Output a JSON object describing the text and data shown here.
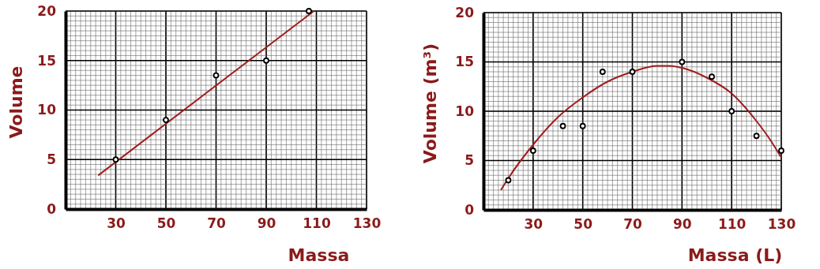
{
  "chart_data": [
    {
      "type": "scatter",
      "xlabel": "Massa",
      "ylabel": "Volume",
      "xlim": [
        10,
        130
      ],
      "ylim": [
        0,
        20
      ],
      "xticks": [
        30,
        50,
        70,
        90,
        110,
        130
      ],
      "yticks": [
        0,
        5,
        10,
        15,
        20
      ],
      "grid": true,
      "series": [
        {
          "type": "scatter",
          "marker": "circle",
          "color": "#000000",
          "x": [
            30,
            50,
            70,
            90,
            107
          ],
          "values": [
            5,
            9,
            13.5,
            15,
            20
          ]
        },
        {
          "type": "line",
          "marker": "none",
          "line_style": "solid",
          "color": "#a01c1c",
          "x": [
            23,
            109
          ],
          "values": [
            3.4,
            20
          ]
        }
      ]
    },
    {
      "type": "scatter",
      "xlabel": "Massa (L)",
      "ylabel": "Volume (m³)",
      "xlim": [
        10,
        130
      ],
      "ylim": [
        0,
        20
      ],
      "xticks": [
        30,
        50,
        70,
        90,
        110,
        130
      ],
      "yticks": [
        0,
        5,
        10,
        15,
        20
      ],
      "grid": true,
      "series": [
        {
          "type": "scatter",
          "marker": "circle",
          "color": "#000000",
          "x": [
            20,
            30,
            42,
            50,
            58,
            70,
            90,
            102,
            110,
            120,
            130
          ],
          "values": [
            3,
            6,
            8.5,
            8.5,
            14,
            14,
            15,
            13.5,
            10,
            7.5,
            6
          ]
        },
        {
          "type": "line",
          "marker": "none",
          "line_style": "solid",
          "color": "#a01c1c",
          "x": [
            17,
            20,
            30,
            40,
            50,
            60,
            70,
            80,
            85,
            90,
            100,
            110,
            120,
            125,
            130
          ],
          "values": [
            2,
            3.2,
            6.6,
            9.4,
            11.4,
            13,
            14,
            14.6,
            14.6,
            14.4,
            13.4,
            11.8,
            9,
            7.3,
            5.3
          ]
        }
      ]
    }
  ]
}
